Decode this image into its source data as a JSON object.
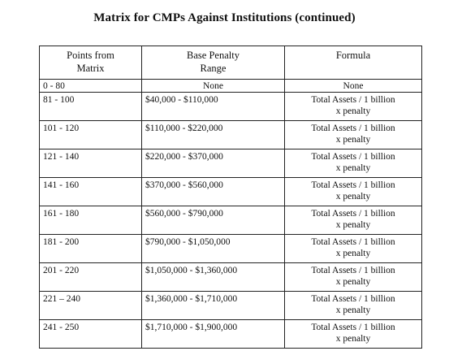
{
  "title": "Matrix for CMPs Against Institutions (continued)",
  "headers": {
    "points": "Points from Matrix",
    "points_line1": "Points from",
    "points_line2": "Matrix",
    "range_line1": "Base Penalty",
    "range_line2": "Range",
    "formula": "Formula"
  },
  "rows": [
    {
      "points": "0 - 80",
      "range": "None",
      "formula_line1": "None",
      "formula_line2": ""
    },
    {
      "points": "81 - 100",
      "range": "$40,000 - $110,000",
      "formula_line1": "Total Assets / 1 billion",
      "formula_line2": "x penalty"
    },
    {
      "points": "101 - 120",
      "range": "$110,000 - $220,000",
      "formula_line1": "Total Assets / 1 billion",
      "formula_line2": "x penalty"
    },
    {
      "points": "121 - 140",
      "range": "$220,000 - $370,000",
      "formula_line1": "Total Assets / 1 billion",
      "formula_line2": "x penalty"
    },
    {
      "points": "141 - 160",
      "range": "$370,000 - $560,000",
      "formula_line1": "Total Assets / 1 billion",
      "formula_line2": "x penalty"
    },
    {
      "points": "161 - 180",
      "range": "$560,000 - $790,000",
      "formula_line1": "Total Assets / 1 billion",
      "formula_line2": "x penalty"
    },
    {
      "points": "181 - 200",
      "range": "$790,000 - $1,050,000",
      "formula_line1": "Total Assets / 1 billion",
      "formula_line2": "x penalty"
    },
    {
      "points": "201 - 220",
      "range": "$1,050,000 - $1,360,000",
      "formula_line1": "Total Assets / 1 billion",
      "formula_line2": "x penalty"
    },
    {
      "points": "221 – 240",
      "range": "$1,360,000 - $1,710,000",
      "formula_line1": "Total Assets / 1 billion",
      "formula_line2": "x penalty"
    },
    {
      "points": "241 - 250",
      "range": "$1,710,000 - $1,900,000",
      "formula_line1": "Total Assets / 1 billion",
      "formula_line2": "x penalty"
    }
  ]
}
